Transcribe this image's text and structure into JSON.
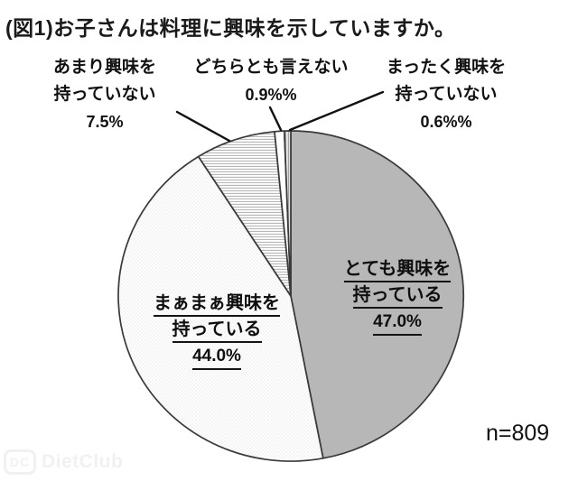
{
  "title": "(図1)お子さんは料理に興味を示していますか。",
  "sample_size": "n=809",
  "watermark": {
    "logo": "DC",
    "text": "DietClub"
  },
  "colors": {
    "slice_gray": "#b7b7b7",
    "slice_outline": "#3a3a3a",
    "hatch_line": "#b4b4b4",
    "dot_texture": "#e0e0e0",
    "text": "#111111"
  },
  "chart_data": {
    "type": "pie",
    "title": "(図1)お子さんは料理に興味を示していますか。",
    "n": 809,
    "start_angle_deg": 0,
    "direction": "clockwise",
    "legend_position": "none",
    "slices": [
      {
        "label": "とても興味を持っている",
        "label_lines": [
          "とても興味を",
          "持っている"
        ],
        "value": 47.0,
        "display": "47.0%",
        "pattern": "solid",
        "color": "#b7b7b7"
      },
      {
        "label": "まぁまぁ興味を持っている",
        "label_lines": [
          "まぁまぁ興味を",
          "持っている"
        ],
        "value": 44.0,
        "display": "44.0%",
        "pattern": "dots",
        "color": "#fdfdfd"
      },
      {
        "label": "あまり興味を持っていない",
        "label_lines": [
          "あまり興味を",
          "持っていない"
        ],
        "value": 7.5,
        "display": "7.5%",
        "pattern": "hlines",
        "color": "#ffffff"
      },
      {
        "label": "どちらとも言えない",
        "label_lines": [
          "どちらとも言えない"
        ],
        "value": 0.9,
        "display": "0.9%%",
        "pattern": "solid",
        "color": "#ffffff"
      },
      {
        "label": "まったく興味を持っていない",
        "label_lines": [
          "まったく興味を",
          "持っていない"
        ],
        "value": 0.6,
        "display": "0.6%%",
        "pattern": "vlines",
        "color": "#e6e6e6"
      }
    ]
  }
}
